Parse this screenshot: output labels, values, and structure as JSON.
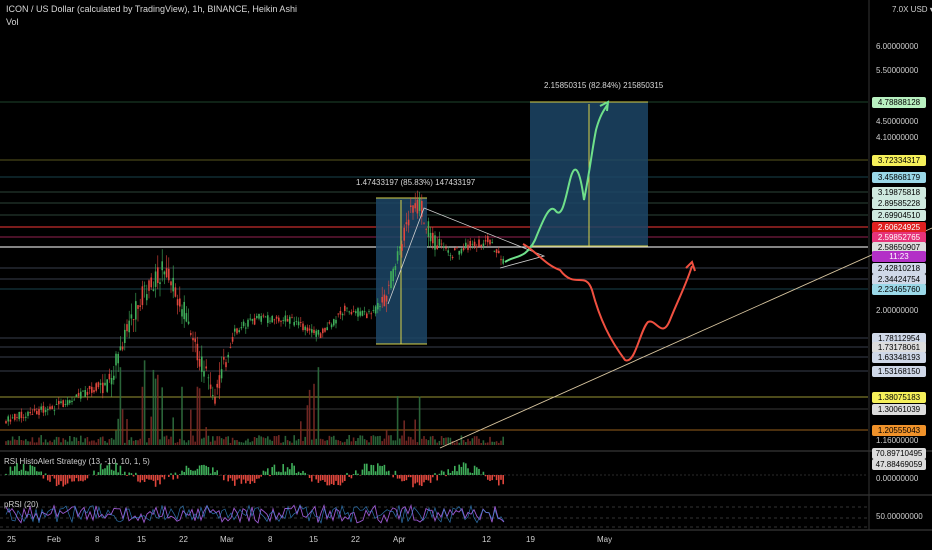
{
  "header": {
    "title": "ICON / US Dollar (calculated by TradingView), 1h, BINANCE, Heikin Ashi",
    "volume_label": "Vol"
  },
  "axis_top_label": "7.0X USD ▾",
  "price_scale_plain": [
    "6.00000000",
    "5.50000000",
    "4.50000000",
    "4.10000000",
    "2.00000000",
    "1.16000000"
  ],
  "price_tags": [
    {
      "text": "4.78888128",
      "bg": "#b8f0c0",
      "fg": "#000000"
    },
    {
      "text": "3.72334317",
      "bg": "#f5f05a",
      "fg": "#000000"
    },
    {
      "text": "3.45868179",
      "bg": "#9ad8e8",
      "fg": "#000000"
    },
    {
      "text": "3.19875818",
      "bg": "#cfeadf",
      "fg": "#000000"
    },
    {
      "text": "2.89585228",
      "bg": "#cfeadf",
      "fg": "#000000"
    },
    {
      "text": "2.69904510",
      "bg": "#cfeadf",
      "fg": "#000000"
    },
    {
      "text": "2.60624925",
      "bg": "#e02020",
      "fg": "#ffffff"
    },
    {
      "text": "2.59852765",
      "bg": "#e6337a",
      "fg": "#ffffff"
    },
    {
      "text": "2.58650907",
      "bg": "#dcdcdc",
      "fg": "#000000"
    },
    {
      "text": "11:23",
      "bg": "#b32fc7",
      "fg": "#ffffff"
    },
    {
      "text": "2.42810218",
      "bg": "#cfd8e8",
      "fg": "#000000"
    },
    {
      "text": "2.34424754",
      "bg": "#cfd8e8",
      "fg": "#000000"
    },
    {
      "text": "2.23465760",
      "bg": "#9ad8e8",
      "fg": "#000000"
    },
    {
      "text": "1.78112954",
      "bg": "#cfd8e8",
      "fg": "#000000"
    },
    {
      "text": "1.73178061",
      "bg": "#dcdcdc",
      "fg": "#000000"
    },
    {
      "text": "1.63348193",
      "bg": "#cfd8e8",
      "fg": "#000000"
    },
    {
      "text": "1.53168150",
      "bg": "#cfd8e8",
      "fg": "#000000"
    },
    {
      "text": "1.38075183",
      "bg": "#f5f05a",
      "fg": "#000000"
    },
    {
      "text": "1.30061039",
      "bg": "#dcdcdc",
      "fg": "#000000"
    },
    {
      "text": "1.20555043",
      "bg": "#f0922a",
      "fg": "#000000"
    }
  ],
  "measurements": {
    "upper": "2.15850315 (82.84%) 215850315",
    "lower": "1.47433197 (85.83%) 147433197"
  },
  "rsi_pane": {
    "title": "RSI HistoAlert Strategy (13, -10, 10, 1, 5)",
    "scale_labels": [
      "70.89710495",
      "47.88469059",
      "0.00000000"
    ]
  },
  "osc_pane": {
    "title": "pRSI (20)",
    "scale_label": "50.00000000"
  },
  "x_axis": [
    "25",
    "Feb",
    "8",
    "15",
    "22",
    "Mar",
    "8",
    "15",
    "22",
    "Apr",
    "12",
    "19",
    "May"
  ],
  "colors": {
    "up": "#3fae5a",
    "down": "#e0463c",
    "projection_up": "#6fe08a",
    "projection_down": "#f05040",
    "measure_box": "#1c4566"
  },
  "chart_data": {
    "type": "candlestick",
    "symbol": "ICON / US Dollar",
    "interval": "1h",
    "exchange": "BINANCE",
    "style": "Heikin Ashi",
    "price_range": [
      1.1,
      7.0
    ],
    "price_scale": "log",
    "key_levels": [
      4.78888128,
      3.72334317,
      3.45868179,
      3.19875818,
      2.89585228,
      2.6990451,
      2.60624925,
      2.59852765,
      2.58650907,
      2.42810218,
      2.34424754,
      2.2346576,
      1.78112954,
      1.73178061,
      1.63348193,
      1.5316815,
      1.38075183,
      1.30061039,
      1.20555043
    ],
    "last_price": 2.58650907,
    "measured_moves": [
      {
        "label": "1.47433197 (85.83%) 147433197",
        "from": 1.72,
        "to": 3.19
      },
      {
        "label": "2.15850315 (82.84%) 215850315",
        "from": 2.6,
        "to": 4.79
      }
    ]
  }
}
